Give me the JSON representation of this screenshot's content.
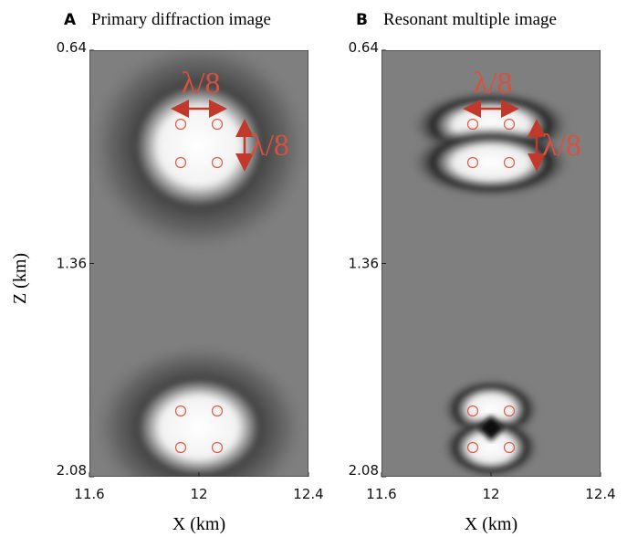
{
  "figure": {
    "ylabel": "Z (km)",
    "panels": [
      {
        "label": "A",
        "title": "Primary diffraction image",
        "xlabel": "X (km)",
        "xlim": [
          11.6,
          12.4
        ],
        "ylim": [
          0.64,
          2.08
        ],
        "xticks": [
          11.6,
          12,
          12.4
        ],
        "yticks": [
          0.64,
          1.36,
          2.08
        ],
        "annotations": [
          "λ/8",
          "λ/8"
        ]
      },
      {
        "label": "B",
        "title": "Resonant multiple image",
        "xlabel": "X (km)",
        "xlim": [
          11.6,
          12.4
        ],
        "ylim": [
          0.64,
          2.08
        ],
        "xticks": [
          11.6,
          12,
          12.4
        ],
        "yticks": [
          0.64,
          1.36,
          2.08
        ],
        "annotations": [
          "λ/8",
          "λ/8"
        ]
      }
    ]
  }
}
